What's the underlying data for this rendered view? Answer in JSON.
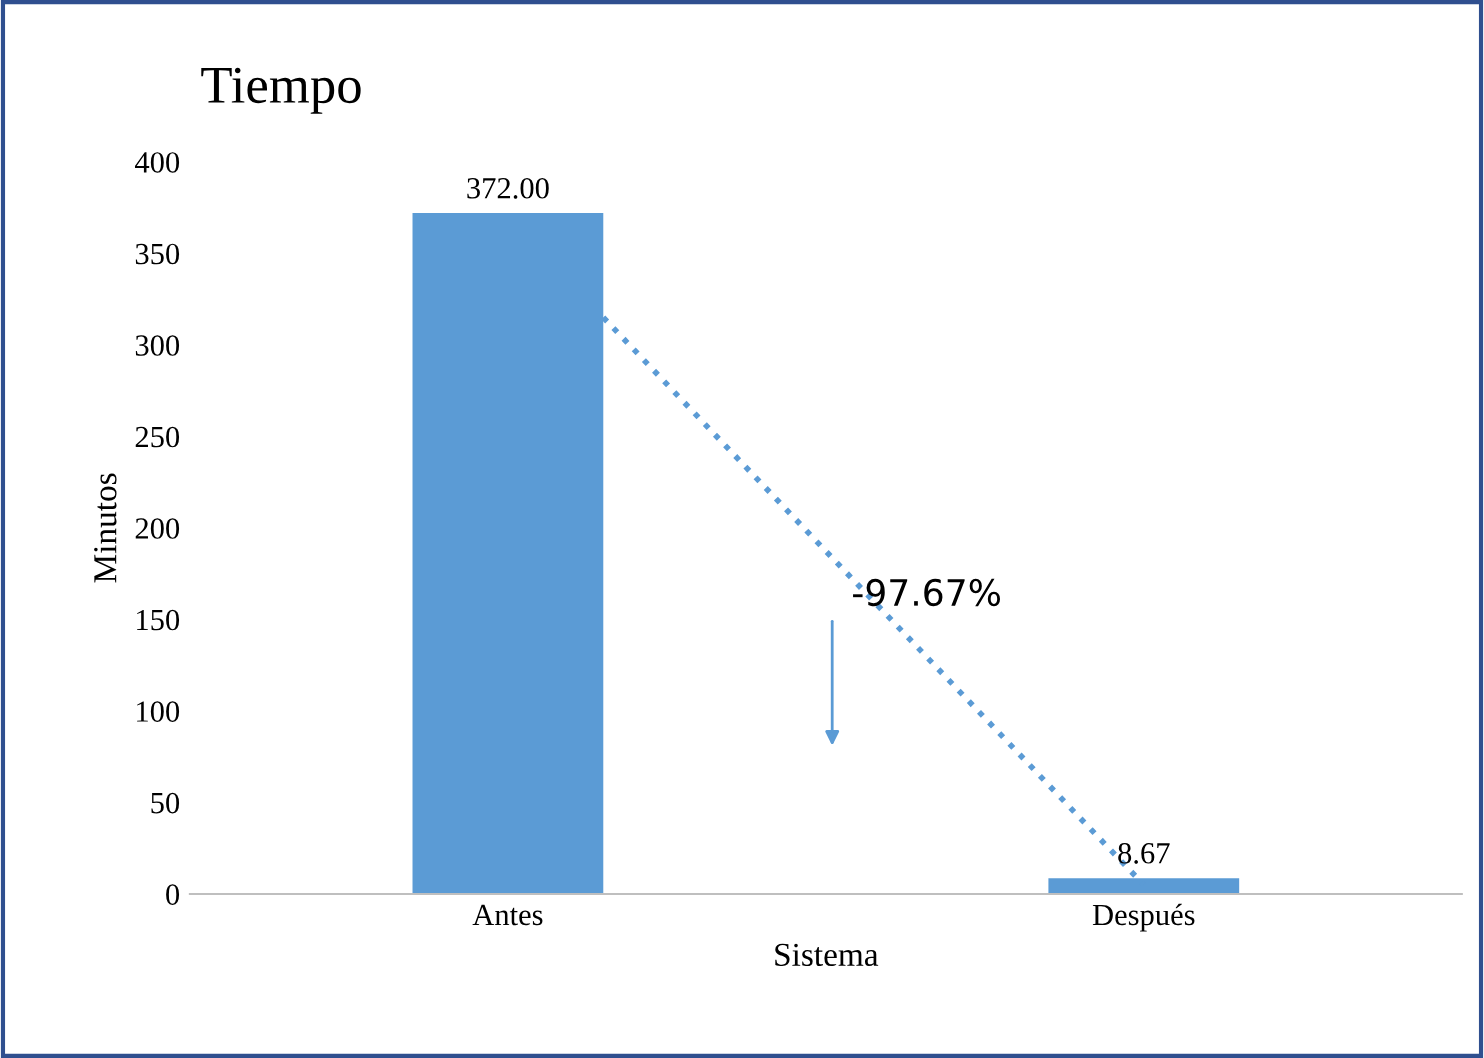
{
  "chart_data": {
    "type": "bar",
    "title": "Tiempo",
    "xlabel": "Sistema",
    "ylabel": "Minutos",
    "categories": [
      "Antes",
      "Después"
    ],
    "values": [
      372.0,
      8.67
    ],
    "value_labels": [
      "372.00",
      "8.67"
    ],
    "color": "#5b9bd5",
    "ylim": [
      0,
      400
    ],
    "yticks": [
      0,
      50,
      100,
      150,
      200,
      250,
      300,
      350,
      400
    ],
    "grid": false,
    "annotations": [
      "-97.67%"
    ]
  }
}
